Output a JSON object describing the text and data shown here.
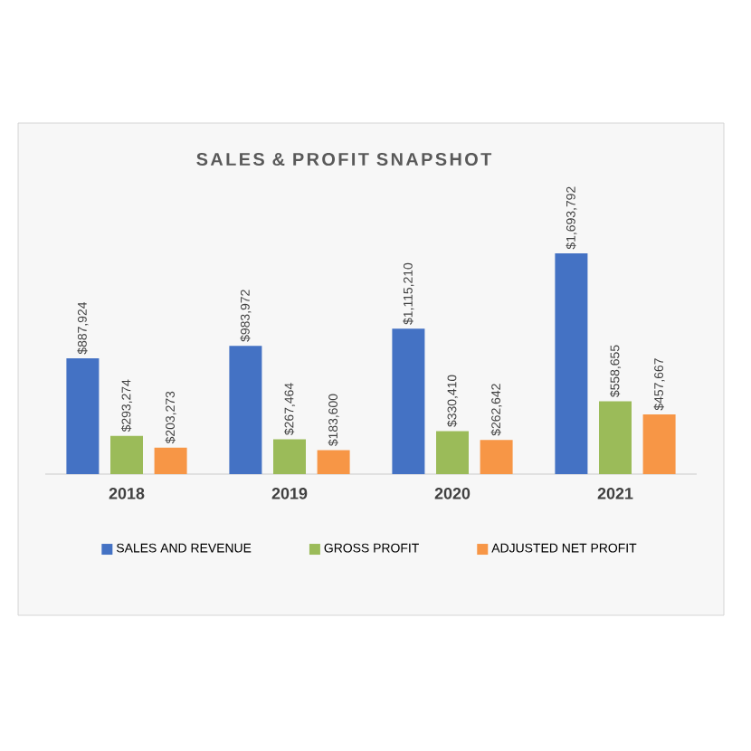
{
  "chart_data": {
    "type": "bar",
    "title": "SALES & PROFIT SNAPSHOT",
    "categories": [
      "2018",
      "2019",
      "2020",
      "2021"
    ],
    "series": [
      {
        "name": "SALES AND REVENUE",
        "color": "#4472c4",
        "values": [
          887924,
          983972,
          1115210,
          1693792
        ],
        "value_labels": [
          "$887,924",
          "$983,972",
          "$1,115,210",
          "$1,693,792"
        ]
      },
      {
        "name": "GROSS PROFIT",
        "color": "#9bbb59",
        "values": [
          293274,
          267464,
          330410,
          558655
        ],
        "value_labels": [
          "$293,274",
          "$267,464",
          "$330,410",
          "$558,655"
        ]
      },
      {
        "name": "ADJUSTED NET PROFIT",
        "color": "#f79646",
        "values": [
          203273,
          183600,
          262642,
          457667
        ],
        "value_labels": [
          "$203,273",
          "$183,600",
          "$262,642",
          "$457,667"
        ]
      }
    ],
    "legend": "bottom"
  }
}
